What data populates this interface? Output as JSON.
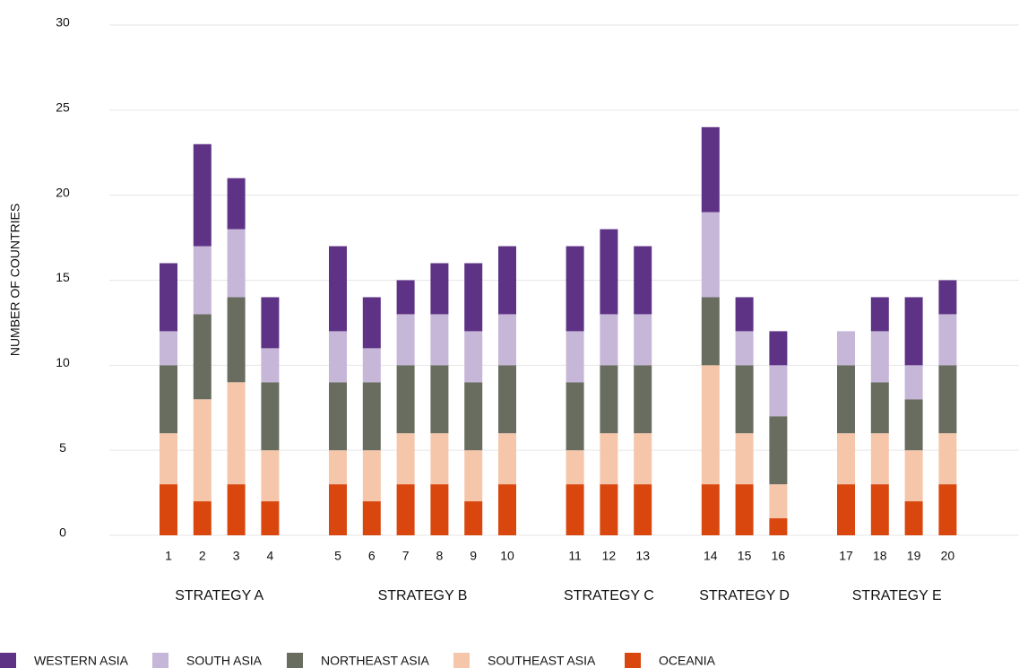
{
  "chart_data": {
    "type": "stacked_bar",
    "ylabel": "NUMBER OF COUNTRIES",
    "groups": [
      {
        "name": "STRATEGY A",
        "categories": [
          "1",
          "2",
          "3",
          "4"
        ]
      },
      {
        "name": "STRATEGY B",
        "categories": [
          "5",
          "6",
          "7",
          "8",
          "9",
          "10"
        ]
      },
      {
        "name": "STRATEGY C",
        "categories": [
          "11",
          "12",
          "13"
        ]
      },
      {
        "name": "STRATEGY D",
        "categories": [
          "14",
          "15",
          "16"
        ]
      },
      {
        "name": "STRATEGY E",
        "categories": [
          "17",
          "18",
          "19",
          "20"
        ]
      }
    ],
    "series": [
      {
        "name": "WESTERN ASIA",
        "color": "#5e3285",
        "values": [
          4,
          6,
          3,
          3,
          5,
          3,
          2,
          3,
          4,
          4,
          5,
          5,
          4,
          5,
          2,
          2,
          0,
          2,
          4,
          2
        ]
      },
      {
        "name": "SOUTH ASIA",
        "color": "#c6b6d8",
        "values": [
          2,
          4,
          4,
          2,
          3,
          2,
          3,
          3,
          3,
          3,
          3,
          3,
          3,
          5,
          2,
          3,
          2,
          3,
          2,
          3
        ]
      },
      {
        "name": "NORTHEAST ASIA",
        "color": "#686d5f",
        "values": [
          4,
          5,
          5,
          4,
          4,
          4,
          4,
          4,
          4,
          4,
          4,
          4,
          4,
          4,
          4,
          4,
          4,
          3,
          3,
          4
        ]
      },
      {
        "name": "SOUTHEAST ASIA",
        "color": "#f5c6aa",
        "values": [
          3,
          6,
          6,
          3,
          2,
          3,
          3,
          3,
          3,
          3,
          2,
          3,
          3,
          7,
          3,
          2,
          3,
          3,
          3,
          3
        ]
      },
      {
        "name": "OCEANIA",
        "color": "#d9470f",
        "values": [
          3,
          2,
          3,
          2,
          3,
          2,
          3,
          3,
          2,
          3,
          3,
          3,
          3,
          3,
          3,
          1,
          3,
          3,
          2,
          3
        ]
      }
    ],
    "ylim": [
      0,
      30
    ],
    "yticks": [
      0,
      5,
      10,
      15,
      20,
      25,
      30
    ],
    "grid": true
  }
}
